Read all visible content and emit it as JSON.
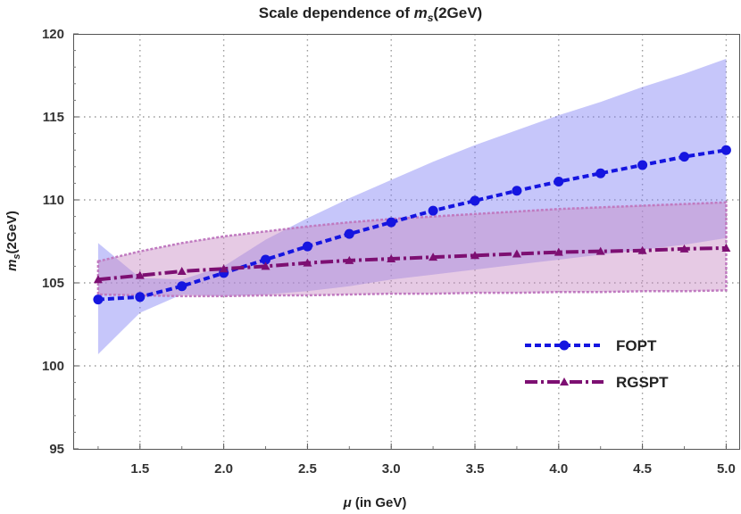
{
  "chart_data": {
    "type": "line",
    "title_text": "Scale dependence of ",
    "title_math": "m",
    "title_math_sub": "s",
    "title_tail": "(2GeV)",
    "xlabel_math": "μ",
    "xlabel_text": " (in GeV)",
    "ylabel_math": "m",
    "ylabel_math_sub": "s",
    "ylabel_text": "(2GeV)",
    "xlim": [
      1.2,
      5.05
    ],
    "ylim": [
      95,
      120
    ],
    "xticks": [
      "1.5",
      "2.0",
      "2.5",
      "3.0",
      "3.5",
      "4.0",
      "4.5",
      "5.0"
    ],
    "xtick_values": [
      1.5,
      2.0,
      2.5,
      3.0,
      3.5,
      4.0,
      4.5,
      5.0
    ],
    "yticks": [
      "95",
      "100",
      "105",
      "110",
      "115",
      "120"
    ],
    "ytick_values": [
      95,
      100,
      105,
      110,
      115,
      120
    ],
    "grid": true,
    "legend_position": "bottom-right",
    "x": [
      1.25,
      1.5,
      1.75,
      2.0,
      2.25,
      2.5,
      2.75,
      3.0,
      3.25,
      3.5,
      3.75,
      4.0,
      4.25,
      4.5,
      4.75,
      5.0
    ],
    "series": [
      {
        "name": "FOPT",
        "color": "#1515e0",
        "marker": "circle",
        "values": [
          104.0,
          104.15,
          104.8,
          105.6,
          106.4,
          107.2,
          107.95,
          108.65,
          109.35,
          109.95,
          110.55,
          111.1,
          111.6,
          112.1,
          112.6,
          113.0
        ],
        "band_upper": [
          107.4,
          105.3,
          105.2,
          106.0,
          107.6,
          108.9,
          110.1,
          111.2,
          112.3,
          113.3,
          114.2,
          115.1,
          115.9,
          116.8,
          117.6,
          118.5
        ],
        "band_lower": [
          100.7,
          103.2,
          104.3,
          104.2,
          104.3,
          104.5,
          104.8,
          105.2,
          105.5,
          105.8,
          106.1,
          106.4,
          106.7,
          107.0,
          107.3,
          107.7
        ],
        "band_color": "#8080f5"
      },
      {
        "name": "RGSPT",
        "color": "#7d0f72",
        "marker": "triangle",
        "values": [
          105.2,
          105.45,
          105.7,
          105.85,
          106.0,
          106.2,
          106.35,
          106.45,
          106.55,
          106.65,
          106.75,
          106.85,
          106.9,
          106.95,
          107.05,
          107.1
        ],
        "band_upper": [
          106.3,
          106.9,
          107.4,
          107.8,
          108.1,
          108.4,
          108.65,
          108.85,
          109.0,
          109.15,
          109.3,
          109.45,
          109.55,
          109.65,
          109.75,
          109.85
        ],
        "band_lower": [
          104.3,
          104.25,
          104.2,
          104.2,
          104.25,
          104.25,
          104.3,
          104.35,
          104.35,
          104.4,
          104.4,
          104.45,
          104.45,
          104.5,
          104.5,
          104.55
        ],
        "band_color": "#c88ac4"
      }
    ]
  }
}
